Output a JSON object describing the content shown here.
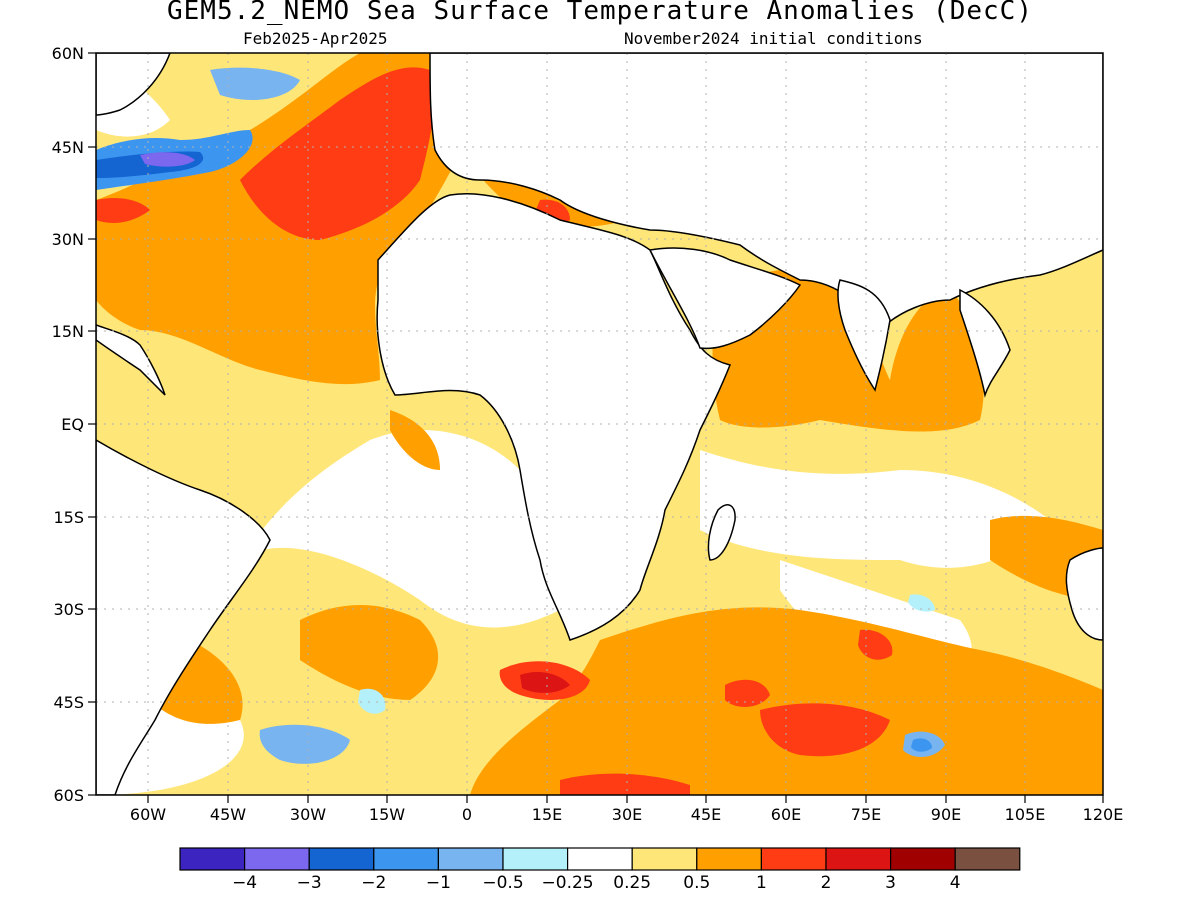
{
  "header": {
    "title": "GEM5.2_NEMO Sea Surface Temperature Anomalies (DecC)",
    "period": "Feb2025-Apr2025",
    "init": "November2024 initial conditions"
  },
  "axes": {
    "lat_labels": [
      "60N",
      "45N",
      "30N",
      "15N",
      "EQ",
      "15S",
      "30S",
      "45S",
      "60S"
    ],
    "lon_labels": [
      "60W",
      "45W",
      "30W",
      "15W",
      "0",
      "15E",
      "30E",
      "45E",
      "60E",
      "75E",
      "90E",
      "105E",
      "120E"
    ]
  },
  "legend": {
    "colors": [
      "#3b24c0",
      "#7b68ee",
      "#1464d2",
      "#3c96f0",
      "#78b4f0",
      "#b4f0fa",
      "#ffffff",
      "#ffe678",
      "#ffa000",
      "#ff3c14",
      "#dc1414",
      "#a00000",
      "#7a5040"
    ],
    "labels": [
      "−4",
      "−3",
      "−2",
      "−1",
      "−0.5",
      "−0.25",
      "0.25",
      "0.5",
      "1",
      "2",
      "3",
      "4"
    ]
  }
}
